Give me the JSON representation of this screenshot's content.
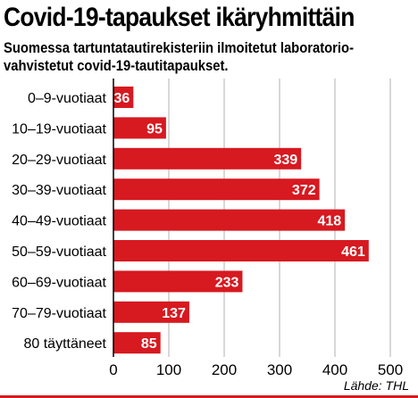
{
  "title": "Covid-19-tapaukset ikäryhmittäin",
  "subtitle": "Suomessa tartuntatautirekisteriin ilmoitetut laboratorio-vahvistetut covid-19-tautitapaukset.",
  "source": "Lähde: THL",
  "colors": {
    "bar": "#d71920",
    "grid": "#b0b0b0",
    "axis": "#000000"
  },
  "chart_data": {
    "type": "bar",
    "orientation": "horizontal",
    "categories": [
      "0–9-vuotiaat",
      "10–19-vuotiaat",
      "20–29-vuotiaat",
      "30–39-vuotiaat",
      "40–49-vuotiaat",
      "50–59-vuotiaat",
      "60–69-vuotiaat",
      "70–79-vuotiaat",
      "80 täyttäneet"
    ],
    "values": [
      36,
      95,
      339,
      372,
      418,
      461,
      233,
      137,
      85
    ],
    "xlim": [
      0,
      500
    ],
    "xticks": [
      0,
      100,
      200,
      300,
      400,
      500
    ],
    "grid": true,
    "data_labels": true
  }
}
